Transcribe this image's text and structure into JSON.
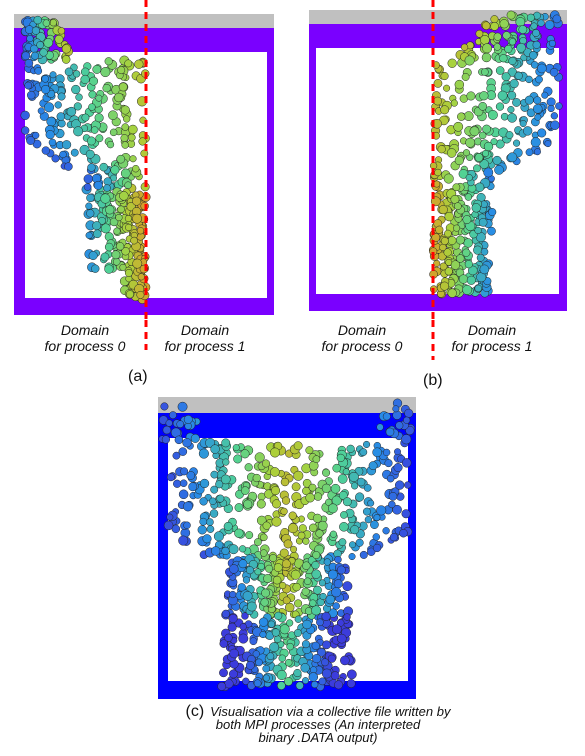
{
  "panel_a": {
    "tag": "(a)",
    "left_label": [
      "Domain",
      "for process 0"
    ],
    "right_label": [
      "Domain",
      "for process 1"
    ]
  },
  "panel_b": {
    "tag": "(b)",
    "left_label": [
      "Domain",
      "for process 0"
    ],
    "right_label": [
      "Domain",
      "for process 1"
    ]
  },
  "panel_c": {
    "tag": "(c)",
    "caption_lines": [
      "Visualisation via a collective file written by",
      "both MPI processes (An interpreted",
      "binary .DATA output)"
    ]
  },
  "colors": {
    "container_purple": "#7a00ff",
    "container_blue": "#0000ff",
    "top_bar": "#c0c0c0",
    "divider": "#ff0000"
  }
}
